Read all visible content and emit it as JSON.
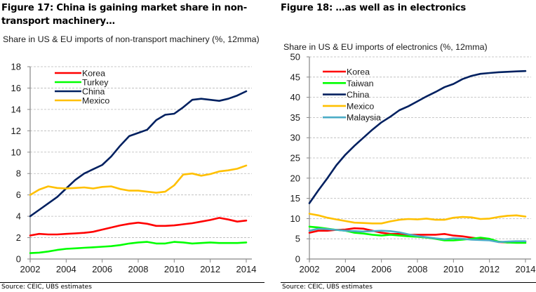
{
  "figures": [
    {
      "title": "Figure 17: China is gaining market share in non-transport machinery…",
      "source": "Source:  CEIC, UBS estimates"
    },
    {
      "title": "Figure 18: …as well as in electronics",
      "source": "Source:  CEIC, UBS estimates"
    }
  ],
  "chart_data": [
    {
      "type": "line",
      "title": "Share in US & EU imports of non-transport machinery (%, 12mma)",
      "xlabel": "",
      "ylabel": "",
      "xlim": [
        2002,
        2014
      ],
      "ylim": [
        0,
        18
      ],
      "xticks": [
        2002,
        2004,
        2006,
        2008,
        2010,
        2012,
        2014
      ],
      "yticks": [
        0,
        2,
        4,
        6,
        8,
        10,
        12,
        14,
        16,
        18
      ],
      "grid": "horizontal dashed",
      "legend_position": "top-left",
      "x": [
        2002,
        2002.5,
        2003,
        2003.5,
        2004,
        2004.5,
        2005,
        2005.5,
        2006,
        2006.5,
        2007,
        2007.5,
        2008,
        2008.5,
        2009,
        2009.5,
        2010,
        2010.5,
        2011,
        2011.5,
        2012,
        2012.5,
        2013,
        2013.5,
        2014
      ],
      "series": [
        {
          "name": "Korea",
          "color": "#ff0000",
          "values": [
            2.2,
            2.35,
            2.3,
            2.3,
            2.35,
            2.4,
            2.45,
            2.55,
            2.75,
            2.95,
            3.15,
            3.3,
            3.4,
            3.3,
            3.1,
            3.1,
            3.15,
            3.25,
            3.35,
            3.5,
            3.65,
            3.85,
            3.7,
            3.5,
            3.6
          ]
        },
        {
          "name": "Turkey",
          "color": "#00ff00",
          "values": [
            0.55,
            0.6,
            0.7,
            0.85,
            0.95,
            1.0,
            1.05,
            1.1,
            1.15,
            1.2,
            1.3,
            1.45,
            1.55,
            1.6,
            1.45,
            1.45,
            1.6,
            1.55,
            1.45,
            1.5,
            1.55,
            1.5,
            1.5,
            1.5,
            1.55
          ]
        },
        {
          "name": "China",
          "color": "#002060",
          "values": [
            4.0,
            4.6,
            5.2,
            5.8,
            6.6,
            7.4,
            8.0,
            8.4,
            8.8,
            9.6,
            10.6,
            11.5,
            11.8,
            12.1,
            13.0,
            13.5,
            13.6,
            14.2,
            14.9,
            15.0,
            14.9,
            14.8,
            15.0,
            15.3,
            15.7
          ]
        },
        {
          "name": "Mexico",
          "color": "#ffc000",
          "values": [
            6.0,
            6.5,
            6.8,
            6.65,
            6.6,
            6.65,
            6.7,
            6.6,
            6.75,
            6.8,
            6.55,
            6.4,
            6.4,
            6.3,
            6.2,
            6.3,
            6.9,
            7.9,
            8.0,
            7.8,
            7.95,
            8.2,
            8.3,
            8.45,
            8.75
          ]
        }
      ]
    },
    {
      "type": "line",
      "title": "Share in US & EU imports of electronics (%, 12mma)",
      "xlabel": "",
      "ylabel": "",
      "xlim": [
        2002,
        2014
      ],
      "ylim": [
        0,
        50
      ],
      "xticks": [
        2002,
        2004,
        2006,
        2008,
        2010,
        2012,
        2014
      ],
      "yticks": [
        0,
        5,
        10,
        15,
        20,
        25,
        30,
        35,
        40,
        45,
        50
      ],
      "grid": "horizontal dashed",
      "legend_position": "top-left",
      "x": [
        2002,
        2002.5,
        2003,
        2003.5,
        2004,
        2004.5,
        2005,
        2005.5,
        2006,
        2006.5,
        2007,
        2007.5,
        2008,
        2008.5,
        2009,
        2009.5,
        2010,
        2010.5,
        2011,
        2011.5,
        2012,
        2012.5,
        2013,
        2013.5,
        2014
      ],
      "series": [
        {
          "name": "Korea",
          "color": "#ff0000",
          "values": [
            6.5,
            7.0,
            7.0,
            7.2,
            7.3,
            7.6,
            7.5,
            7.0,
            6.5,
            6.2,
            6.2,
            6.0,
            6.0,
            6.0,
            6.0,
            6.2,
            5.8,
            5.6,
            5.3,
            5.0,
            4.8,
            4.2,
            4.1,
            4.2,
            4.3
          ]
        },
        {
          "name": "Taiwan",
          "color": "#00ff00",
          "values": [
            8.0,
            7.8,
            7.5,
            7.2,
            7.0,
            6.5,
            6.3,
            6.0,
            5.8,
            6.0,
            5.8,
            5.6,
            5.5,
            5.3,
            5.0,
            4.6,
            4.6,
            4.8,
            5.0,
            5.3,
            5.0,
            4.3,
            4.1,
            4.0,
            4.0
          ]
        },
        {
          "name": "China",
          "color": "#002060",
          "values": [
            13.8,
            17.0,
            20.0,
            23.2,
            25.8,
            28.0,
            30.0,
            32.0,
            33.8,
            35.2,
            36.8,
            37.8,
            39.0,
            40.2,
            41.3,
            42.5,
            43.3,
            44.5,
            45.3,
            45.8,
            46.0,
            46.2,
            46.3,
            46.4,
            46.5
          ]
        },
        {
          "name": "Mexico",
          "color": "#ffc000",
          "values": [
            11.2,
            10.8,
            10.2,
            9.8,
            9.4,
            9.0,
            8.9,
            8.8,
            8.8,
            9.3,
            9.7,
            9.9,
            9.8,
            10.0,
            9.7,
            9.7,
            10.2,
            10.4,
            10.3,
            9.9,
            10.0,
            10.4,
            10.7,
            10.8,
            10.5
          ]
        },
        {
          "name": "Malaysia",
          "color": "#4bacc6",
          "values": [
            7.0,
            7.5,
            7.4,
            7.2,
            7.0,
            6.9,
            6.8,
            6.9,
            7.0,
            6.9,
            6.6,
            6.1,
            5.7,
            5.4,
            5.1,
            4.9,
            5.1,
            5.0,
            4.8,
            4.7,
            4.6,
            4.2,
            4.3,
            4.4,
            4.4
          ]
        }
      ]
    }
  ]
}
